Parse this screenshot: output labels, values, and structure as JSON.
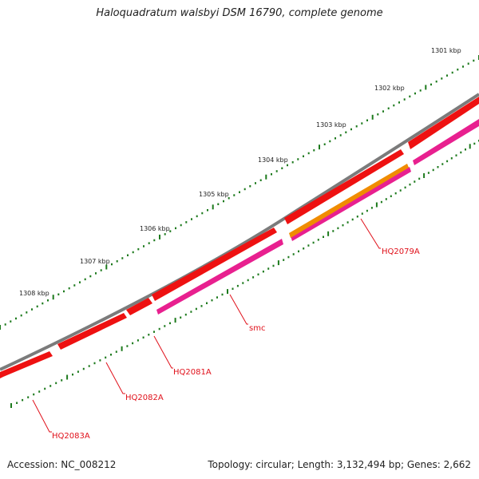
{
  "title": "Haloquadratum walsbyi DSM 16790, complete genome",
  "accession": "Accession: NC_008212",
  "summary": "Topology: circular; Length: 3,132,494 bp; Genes: 2,662",
  "colors": {
    "backbone": "#7b7b7b",
    "cds_red": "#ee1111",
    "cds_pink": "#e8208f",
    "cds_orange": "#f08c00",
    "tick_green": "#1d7a1d",
    "label_red": "#e0101a"
  },
  "ticks": [
    "1301 kbp",
    "1302 kbp",
    "1303 kbp",
    "1304 kbp",
    "1305 kbp",
    "1306 kbp",
    "1307 kbp",
    "1308 kbp"
  ],
  "gene_labels": [
    "HQ2079A",
    "smc",
    "HQ2081A",
    "HQ2082A",
    "HQ2083A"
  ]
}
